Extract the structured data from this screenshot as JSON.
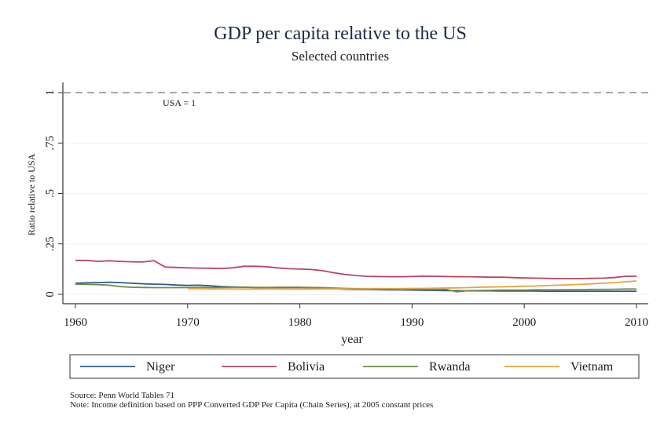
{
  "chart_data": {
    "type": "line",
    "title": "GDP per capita relative to the US",
    "subtitle": "Selected countries",
    "xlabel": "year",
    "ylabel": "Ratio relative to USA",
    "xlim": [
      1960,
      2010
    ],
    "ylim": [
      0,
      1
    ],
    "x_ticks": [
      1960,
      1970,
      1980,
      1990,
      2000,
      2010
    ],
    "y_ticks": [
      0,
      0.25,
      0.5,
      0.75,
      1
    ],
    "y_tick_labels": [
      "0",
      ".25",
      ".5",
      ".75",
      "1"
    ],
    "grid": true,
    "reference_line": {
      "y": 1,
      "style": "dashed",
      "label": "USA = 1"
    },
    "legend_position": "bottom",
    "x": [
      1960,
      1961,
      1962,
      1963,
      1964,
      1965,
      1966,
      1967,
      1968,
      1969,
      1970,
      1971,
      1972,
      1973,
      1974,
      1975,
      1976,
      1977,
      1978,
      1979,
      1980,
      1981,
      1982,
      1983,
      1984,
      1985,
      1986,
      1987,
      1988,
      1989,
      1990,
      1991,
      1992,
      1993,
      1994,
      1995,
      1996,
      1997,
      1998,
      1999,
      2000,
      2001,
      2002,
      2003,
      2004,
      2005,
      2006,
      2007,
      2008,
      2009,
      2010
    ],
    "series": [
      {
        "name": "Niger",
        "color": "#2b5d8b",
        "values": [
          0.055,
          0.057,
          0.058,
          0.06,
          0.058,
          0.055,
          0.052,
          0.05,
          0.049,
          0.046,
          0.044,
          0.045,
          0.042,
          0.038,
          0.036,
          0.035,
          0.034,
          0.033,
          0.033,
          0.034,
          0.034,
          0.033,
          0.032,
          0.028,
          0.025,
          0.024,
          0.024,
          0.023,
          0.022,
          0.022,
          0.021,
          0.02,
          0.019,
          0.018,
          0.018,
          0.017,
          0.017,
          0.017,
          0.016,
          0.016,
          0.016,
          0.016,
          0.015,
          0.015,
          0.015,
          0.015,
          0.015,
          0.015,
          0.015,
          0.015,
          0.015
        ]
      },
      {
        "name": "Bolivia",
        "color": "#b8465f",
        "values": [
          0.168,
          0.168,
          0.163,
          0.166,
          0.163,
          0.161,
          0.16,
          0.167,
          0.135,
          0.133,
          0.131,
          0.13,
          0.129,
          0.128,
          0.131,
          0.139,
          0.139,
          0.137,
          0.131,
          0.127,
          0.125,
          0.123,
          0.117,
          0.107,
          0.099,
          0.093,
          0.089,
          0.088,
          0.087,
          0.087,
          0.088,
          0.09,
          0.089,
          0.088,
          0.087,
          0.087,
          0.086,
          0.085,
          0.085,
          0.083,
          0.081,
          0.08,
          0.079,
          0.078,
          0.078,
          0.078,
          0.079,
          0.08,
          0.083,
          0.089,
          0.09
        ]
      },
      {
        "name": "Rwanda",
        "color": "#6e8b4b",
        "values": [
          0.05,
          0.049,
          0.048,
          0.045,
          0.038,
          0.035,
          0.034,
          0.033,
          0.033,
          0.033,
          0.033,
          0.034,
          0.033,
          0.034,
          0.035,
          0.035,
          0.034,
          0.034,
          0.035,
          0.035,
          0.035,
          0.034,
          0.033,
          0.031,
          0.029,
          0.028,
          0.028,
          0.027,
          0.027,
          0.026,
          0.026,
          0.027,
          0.026,
          0.025,
          0.012,
          0.018,
          0.019,
          0.02,
          0.021,
          0.021,
          0.021,
          0.022,
          0.022,
          0.022,
          0.023,
          0.023,
          0.024,
          0.024,
          0.025,
          0.026,
          0.026
        ]
      },
      {
        "name": "Vietnam",
        "color": "#e8a33d",
        "values": [
          null,
          null,
          null,
          null,
          null,
          null,
          null,
          null,
          null,
          null,
          0.028,
          0.028,
          0.027,
          0.027,
          0.027,
          0.026,
          0.026,
          0.027,
          0.027,
          0.026,
          0.026,
          0.026,
          0.027,
          0.027,
          0.027,
          0.027,
          0.028,
          0.028,
          0.028,
          0.028,
          0.029,
          0.029,
          0.03,
          0.031,
          0.032,
          0.033,
          0.035,
          0.036,
          0.037,
          0.038,
          0.04,
          0.041,
          0.043,
          0.045,
          0.047,
          0.049,
          0.052,
          0.055,
          0.058,
          0.062,
          0.066
        ]
      }
    ],
    "notes": [
      "Source: Penn World Tables 71",
      "Note: Income definition based on PPP Converted GDP Per Capita (Chain Series), at 2005 constant prices"
    ]
  }
}
